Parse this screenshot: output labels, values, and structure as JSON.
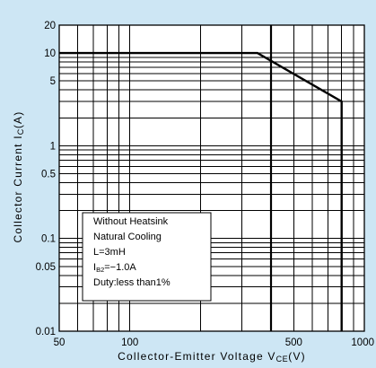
{
  "colors": {
    "background": "#cde6f4",
    "plot_background": "#ffffff",
    "ink": "#000000"
  },
  "chart_data": {
    "type": "line",
    "x_scale": "log",
    "y_scale": "log",
    "xlim": [
      50,
      1000
    ],
    "ylim": [
      0.01,
      20
    ],
    "grid": true,
    "xlabel": {
      "text": "Collector-Emitter Voltage V",
      "sub": "CE",
      "suffix": "(V)"
    },
    "ylabel": {
      "text": "Collector Current I",
      "sub": "C",
      "suffix": "(A)"
    },
    "x_ticks": [
      {
        "value": 50,
        "label": "50"
      },
      {
        "value": 100,
        "label": "100"
      },
      {
        "value": 500,
        "label": "500"
      },
      {
        "value": 1000,
        "label": "1000"
      }
    ],
    "y_ticks": [
      {
        "value": 20,
        "label": "20"
      },
      {
        "value": 10,
        "label": "10"
      },
      {
        "value": 5,
        "label": "5"
      },
      {
        "value": 1,
        "label": "1"
      },
      {
        "value": 0.5,
        "label": "0.5"
      },
      {
        "value": 0.1,
        "label": "0.1"
      },
      {
        "value": 0.05,
        "label": "0.05"
      },
      {
        "value": 0.01,
        "label": "0.01"
      }
    ],
    "series": [
      {
        "x": [
          50,
          350,
          800,
          800
        ],
        "y": [
          10,
          10,
          3,
          0.01
        ]
      }
    ],
    "reference_lines": [
      {
        "x": 400
      }
    ],
    "annotation": {
      "placement": "lower-left",
      "lines": [
        {
          "text": "Without Heatsink"
        },
        {
          "text": "Natural Cooling"
        },
        {
          "text": "L=3mH"
        },
        {
          "text": "I",
          "sub": "B2",
          "suffix": "=−1.0A"
        },
        {
          "text": "Duty:less than1%"
        }
      ]
    }
  }
}
